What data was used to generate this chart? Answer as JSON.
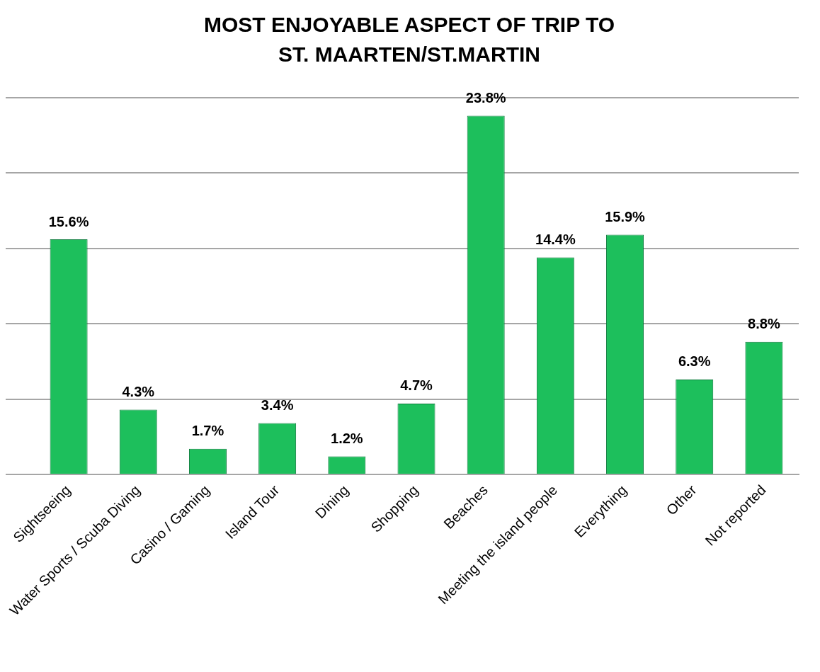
{
  "chart_data": {
    "type": "bar",
    "title": "MOST ENJOYABLE ASPECT OF TRIP TO ST. MAARTEN/ST.MARTIN",
    "categories": [
      "Sightseeing",
      "Water Sports / Scuba Diving",
      "Casino / Gaming",
      "Island Tour",
      "Dining",
      "Shopping",
      "Beaches",
      "Meeting the island people",
      "Everything",
      "Other",
      "Not reported"
    ],
    "values": [
      15.6,
      4.3,
      1.7,
      3.4,
      1.2,
      4.7,
      23.8,
      14.4,
      15.9,
      6.3,
      8.8
    ],
    "value_labels": [
      "15.6%",
      "4.3%",
      "1.7%",
      "3.4%",
      "1.2%",
      "4.7%",
      "23.8%",
      "14.4%",
      "15.9%",
      "6.3%",
      "8.8%"
    ],
    "color": "#1dbf5c",
    "grid": "y",
    "legend": false
  }
}
